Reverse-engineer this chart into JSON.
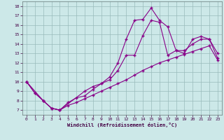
{
  "xlabel": "Windchill (Refroidissement éolien,°C)",
  "bg_color": "#cce8e8",
  "line_color": "#880088",
  "ylim": [
    6.5,
    18.5
  ],
  "xlim": [
    -0.5,
    23.5
  ],
  "yticks": [
    7,
    8,
    9,
    10,
    11,
    12,
    13,
    14,
    15,
    16,
    17,
    18
  ],
  "xticks": [
    0,
    1,
    2,
    3,
    4,
    5,
    6,
    7,
    8,
    9,
    10,
    11,
    12,
    13,
    14,
    15,
    16,
    17,
    18,
    19,
    20,
    21,
    22,
    23
  ],
  "line1_x": [
    0,
    1,
    2,
    3,
    4,
    5,
    6,
    7,
    8,
    9,
    10,
    11,
    12,
    13,
    14,
    15,
    16,
    17,
    18,
    19,
    20,
    21,
    22,
    23
  ],
  "line1_y": [
    10.0,
    8.8,
    8.0,
    7.2,
    7.0,
    7.5,
    7.8,
    8.2,
    8.6,
    9.0,
    9.4,
    9.8,
    10.2,
    10.7,
    11.2,
    11.6,
    12.0,
    12.3,
    12.6,
    12.9,
    13.2,
    13.5,
    13.8,
    12.3
  ],
  "line2_x": [
    0,
    1,
    2,
    3,
    4,
    7,
    8,
    9,
    10,
    11,
    12,
    13,
    14,
    15,
    16,
    17,
    18,
    19,
    20,
    21,
    22,
    23
  ],
  "line2_y": [
    10.0,
    8.8,
    8.0,
    7.2,
    7.0,
    9.0,
    9.5,
    9.8,
    10.2,
    11.2,
    12.8,
    12.8,
    14.9,
    16.5,
    16.3,
    12.8,
    13.3,
    13.3,
    14.0,
    14.5,
    14.5,
    13.0
  ],
  "line3_x": [
    0,
    2,
    3,
    4,
    5,
    6,
    7,
    8,
    9,
    10,
    11,
    12,
    13,
    14,
    15,
    16,
    17,
    18,
    19,
    20,
    21,
    22,
    23
  ],
  "line3_y": [
    10.0,
    8.0,
    7.2,
    7.0,
    7.8,
    8.3,
    8.5,
    9.2,
    9.8,
    10.5,
    12.0,
    14.5,
    16.5,
    16.6,
    17.8,
    16.5,
    15.8,
    13.3,
    13.0,
    14.5,
    14.8,
    14.5,
    12.5
  ]
}
